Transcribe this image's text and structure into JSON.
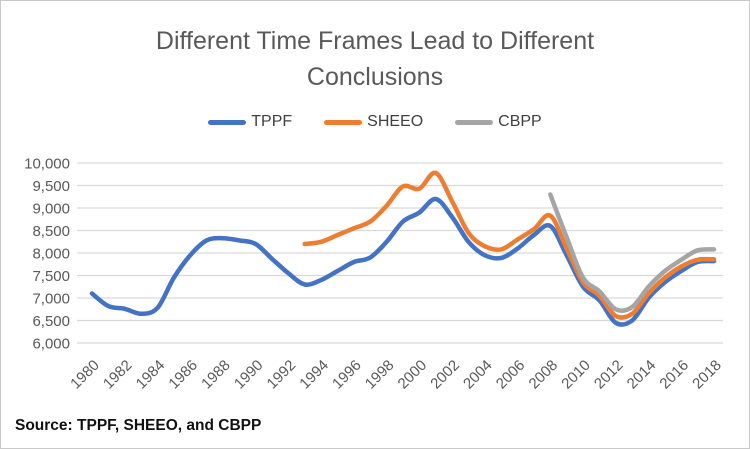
{
  "source_note": "Source: TPPF, SHEEO, and CBPP",
  "chart_data": {
    "type": "line",
    "title": "Different Time Frames Lead to Different Conclusions",
    "xlabel": "",
    "ylabel": "",
    "ylim": [
      6000,
      10000
    ],
    "ytick_step": 500,
    "x_tick_every": 2,
    "grid": "horizontal",
    "legend_position": "top",
    "x": [
      1980,
      1981,
      1982,
      1983,
      1984,
      1985,
      1986,
      1987,
      1988,
      1989,
      1990,
      1991,
      1992,
      1993,
      1994,
      1995,
      1996,
      1997,
      1998,
      1999,
      2000,
      2001,
      2002,
      2003,
      2004,
      2005,
      2006,
      2007,
      2008,
      2009,
      2010,
      2011,
      2012,
      2013,
      2014,
      2015,
      2016,
      2017,
      2018
    ],
    "series": [
      {
        "name": "TPPF",
        "color": "#4472C4",
        "start_year": 1980,
        "values": [
          7100,
          6820,
          6760,
          6650,
          6780,
          7450,
          7950,
          8280,
          8330,
          8280,
          8200,
          7870,
          7550,
          7300,
          7400,
          7600,
          7800,
          7900,
          8250,
          8700,
          8900,
          9200,
          8800,
          8250,
          7950,
          7890,
          8100,
          8400,
          8600,
          7950,
          7250,
          6950,
          6450,
          6500,
          7000,
          7350,
          7600,
          7800,
          7820
        ]
      },
      {
        "name": "SHEEO",
        "color": "#ED7D31",
        "start_year": 1993,
        "values": [
          8200,
          8250,
          8400,
          8550,
          8700,
          9050,
          9480,
          9430,
          9780,
          9150,
          8450,
          8150,
          8080,
          8300,
          8530,
          8830,
          8100,
          7350,
          7050,
          6600,
          6650,
          7100,
          7450,
          7700,
          7850,
          7860
        ]
      },
      {
        "name": "CBPP",
        "color": "#A5A5A5",
        "start_year": 2008,
        "values": [
          9300,
          8350,
          7450,
          7150,
          6750,
          6800,
          7250,
          7600,
          7850,
          8060,
          8080
        ]
      }
    ]
  }
}
